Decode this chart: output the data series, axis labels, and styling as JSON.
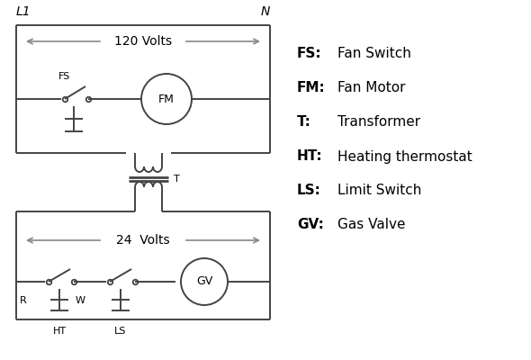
{
  "background_color": "#ffffff",
  "line_color": "#444444",
  "arrow_color": "#888888",
  "text_color": "#000000",
  "legend": {
    "FS": "Fan Switch",
    "FM": "Fan Motor",
    "T": "Transformer",
    "HT": "Heating thermostat",
    "LS": "Limit Switch",
    "GV": "Gas Valve"
  },
  "L1_label": "L1",
  "N_label": "N",
  "v120_label": "120 Volts",
  "v24_label": "24  Volts"
}
